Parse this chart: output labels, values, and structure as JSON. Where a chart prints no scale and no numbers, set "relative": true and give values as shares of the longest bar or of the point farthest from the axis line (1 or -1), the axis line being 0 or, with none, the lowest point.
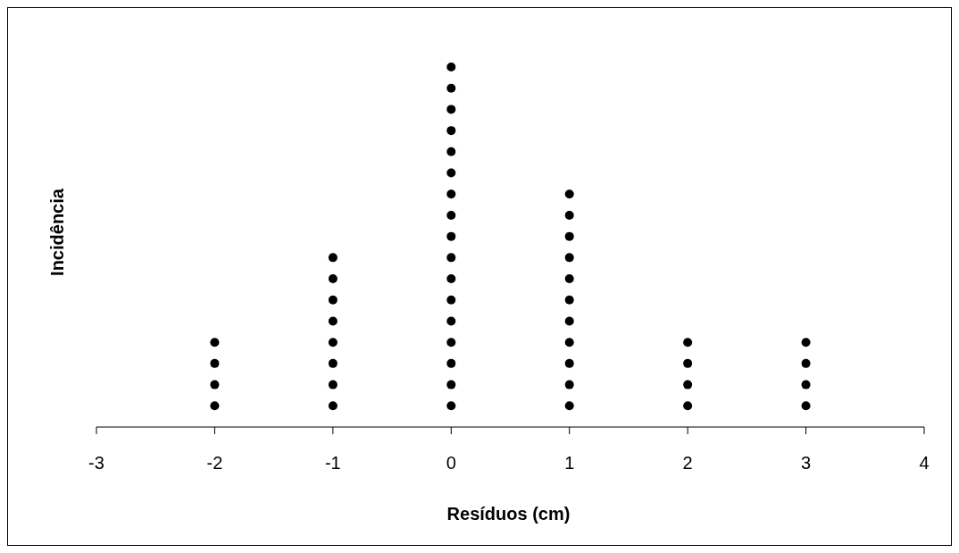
{
  "chart_data": {
    "type": "scatter",
    "xlabel": "Resíduos (cm)",
    "ylabel": "Incidência",
    "xlim": [
      -3,
      4
    ],
    "xticks": [
      -3,
      -2,
      -1,
      0,
      1,
      2,
      3,
      4
    ],
    "relative": true,
    "tick_labels": "x",
    "marker": "circle",
    "series": [
      {
        "color": "#000000",
        "x": [
          -2,
          -2,
          -2,
          -2,
          -1,
          -1,
          -1,
          -1,
          -1,
          -1,
          -1,
          -1,
          0,
          0,
          0,
          0,
          0,
          0,
          0,
          0,
          0,
          0,
          0,
          0,
          0,
          0,
          0,
          0,
          0,
          1,
          1,
          1,
          1,
          1,
          1,
          1,
          1,
          1,
          1,
          1,
          2,
          2,
          2,
          2,
          3,
          3,
          3,
          3
        ],
        "values": [
          0.0588,
          0.1176,
          0.1765,
          0.2353,
          0.0588,
          0.1176,
          0.1765,
          0.2353,
          0.2941,
          0.3529,
          0.4118,
          0.4706,
          0.0588,
          0.1176,
          0.1765,
          0.2353,
          0.2941,
          0.3529,
          0.4118,
          0.4706,
          0.5294,
          0.5882,
          0.6471,
          0.7059,
          0.7647,
          0.8235,
          0.8824,
          0.9412,
          1,
          0.0588,
          0.1176,
          0.1765,
          0.2353,
          0.2941,
          0.3529,
          0.4118,
          0.4706,
          0.5294,
          0.5882,
          0.6471,
          0.0588,
          0.1176,
          0.1765,
          0.2353,
          0.0588,
          0.1176,
          0.1765,
          0.2353
        ]
      }
    ]
  }
}
